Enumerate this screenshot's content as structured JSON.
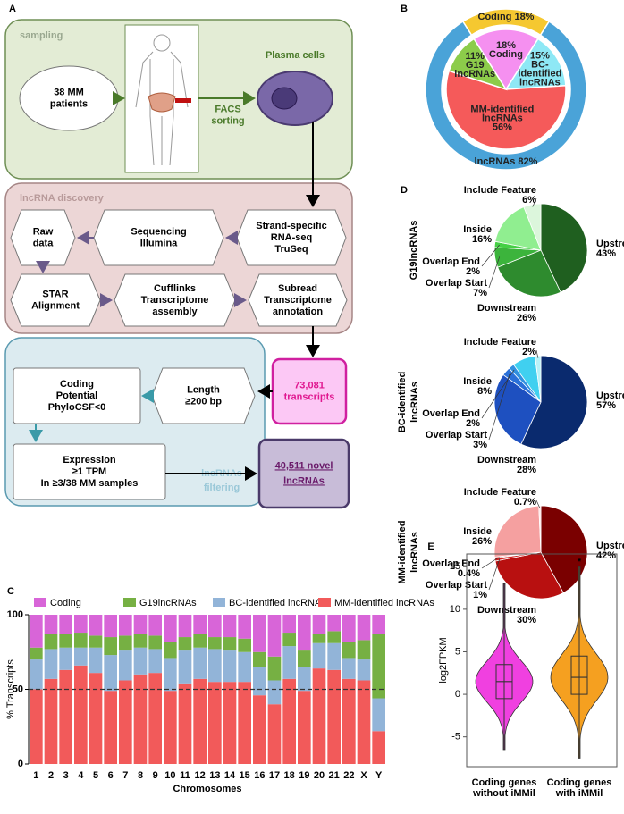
{
  "figure": {
    "panel_labels": [
      "A",
      "B",
      "C",
      "D",
      "E"
    ]
  },
  "diagram": {
    "sections": [
      [
        "sampling"
      ],
      [
        "lncRNA discovery"
      ],
      [
        "lncRNAs",
        "filtering"
      ]
    ],
    "edge_labels": [
      [
        "FACS",
        "sorting"
      ]
    ],
    "nodes": [
      [
        "38 MM",
        "patients"
      ],
      [
        "Plasma cells"
      ],
      [
        "Strand-specific",
        "RNA-seq",
        "TruSeq"
      ],
      [
        "Sequencing",
        "Illumina"
      ],
      [
        "Raw",
        "data"
      ],
      [
        "STAR",
        "Alignment"
      ],
      [
        "Cufflinks",
        "Transcriptome",
        "assembly"
      ],
      [
        "Subread",
        "Transcriptome",
        "annotation"
      ],
      [
        "73,081",
        "transcripts"
      ],
      [
        "Length",
        "≥200 bp"
      ],
      [
        "Coding",
        "Potential",
        "PhyloCSF<0"
      ],
      [
        "Expression",
        "≥1 TPM",
        "In ≥3/38 MM samples"
      ],
      [
        "40,511 novel",
        "lncRNAs"
      ]
    ]
  },
  "chart_data": [
    {
      "type": "donut",
      "rings": [
        {
          "labels": [
            [
              "Coding 18%"
            ],
            [
              "lncRNAs 82%"
            ]
          ],
          "values": [
            18,
            82
          ],
          "colors": [
            "#f5c830",
            "#4aa3d8"
          ]
        },
        {
          "labels": [
            [
              "18%",
              "Coding"
            ],
            [
              "15%",
              "BC-",
              "identified",
              "lncRNAs"
            ],
            [
              "MM-identified",
              "lncRNAs",
              "56%"
            ],
            [
              "11%",
              "G19",
              "lncRNAs"
            ]
          ],
          "values": [
            18,
            15,
            56,
            11
          ],
          "colors": [
            "#f590f0",
            "#8ee8f5",
            "#f55a5a",
            "#8ccc4a"
          ]
        }
      ]
    },
    {
      "type": "pie",
      "title": [
        "G19lncRNAs"
      ],
      "categories": [
        "Upstream",
        "Downstream",
        "Overlap Start",
        "Overlap End",
        "Inside",
        "Include Feature"
      ],
      "values": [
        43,
        26,
        7,
        2,
        16,
        6
      ],
      "value_labels": [
        "43%",
        "26%",
        "7%",
        "2%",
        "16%",
        "6%"
      ],
      "colors": [
        "#1f5f1f",
        "#2e8b2e",
        "#3cb43c",
        "#45d045",
        "#90ee90",
        "#dcf6dc"
      ]
    },
    {
      "type": "pie",
      "title": [
        "BC-identified",
        "lncRNAs"
      ],
      "categories": [
        "Upstream",
        "Downstream",
        "Overlap Start",
        "Overlap End",
        "Inside",
        "Include Feature"
      ],
      "values": [
        57,
        28,
        3,
        2,
        8,
        2
      ],
      "value_labels": [
        "57%",
        "28%",
        "3%",
        "2%",
        "8%",
        "2%"
      ],
      "colors": [
        "#0a2a6e",
        "#1e50c0",
        "#2a70d8",
        "#3090e0",
        "#40d0f0",
        "#b8f2f8"
      ]
    },
    {
      "type": "pie",
      "title": [
        "MM-identified",
        "lncRNAs"
      ],
      "categories": [
        "Upstream",
        "Downstream",
        "Overlap Start",
        "Overlap End",
        "Inside",
        "Include Feature"
      ],
      "values": [
        42,
        30,
        1,
        0.4,
        26,
        0.7
      ],
      "value_labels": [
        "42%",
        "30%",
        "1%",
        "0.4%",
        "26%",
        "0.7%"
      ],
      "colors": [
        "#7a0000",
        "#b81010",
        "#d02020",
        "#e04040",
        "#f5a0a0",
        "#fde0e0"
      ]
    },
    {
      "type": "bar",
      "stacked": true,
      "xlabel": "Chromosomes",
      "ylabel": "% Transcripts",
      "categories": [
        "1",
        "2",
        "3",
        "4",
        "5",
        "6",
        "7",
        "8",
        "9",
        "10",
        "11",
        "12",
        "13",
        "14",
        "15",
        "16",
        "17",
        "18",
        "19",
        "20",
        "21",
        "22",
        "X",
        "Y"
      ],
      "series": [
        {
          "name": "Coding",
          "color": "#d865d8",
          "values": [
            22,
            13,
            13,
            12,
            14,
            15,
            14,
            13,
            14,
            18,
            15,
            13,
            15,
            15,
            16,
            25,
            28,
            12,
            24,
            13,
            11,
            18,
            17,
            13
          ]
        },
        {
          "name": "G19lncRNAs",
          "color": "#76b043",
          "values": [
            8,
            10,
            9,
            10,
            8,
            12,
            10,
            9,
            9,
            11,
            9,
            9,
            8,
            9,
            9,
            10,
            16,
            9,
            11,
            6,
            8,
            11,
            13,
            43
          ]
        },
        {
          "name": "BC-identified lncRNAs",
          "color": "#92b4d8",
          "values": [
            20,
            20,
            15,
            12,
            17,
            24,
            20,
            18,
            16,
            22,
            22,
            21,
            22,
            21,
            20,
            19,
            16,
            22,
            16,
            17,
            18,
            14,
            14,
            22
          ]
        },
        {
          "name": "MM-identified lncRNAs",
          "color": "#f25a5a",
          "values": [
            50,
            57,
            63,
            66,
            61,
            49,
            56,
            60,
            61,
            49,
            54,
            57,
            55,
            55,
            55,
            46,
            40,
            57,
            49,
            64,
            63,
            57,
            56,
            22
          ]
        }
      ],
      "ylim": [
        0,
        100
      ],
      "yticks": [
        0,
        50,
        100
      ],
      "reference_line": 50
    },
    {
      "type": "violin",
      "ylabel": "log2FPKM",
      "categories": [
        [
          "Coding genes",
          "without iMMil"
        ],
        [
          "Coding genes",
          "with iMMil"
        ]
      ],
      "colors": [
        "#f040e0",
        "#f5a020"
      ],
      "stats": [
        {
          "min": -6.5,
          "q1": -0.5,
          "median": 1.5,
          "q3": 3.5,
          "max": 13
        },
        {
          "min": -7.5,
          "q1": 0,
          "median": 2,
          "q3": 4.5,
          "max": 15
        }
      ],
      "annotation": "*",
      "ylim": [
        -8.5,
        16.5
      ],
      "yticks": [
        -5,
        0,
        5,
        10,
        15
      ]
    }
  ]
}
